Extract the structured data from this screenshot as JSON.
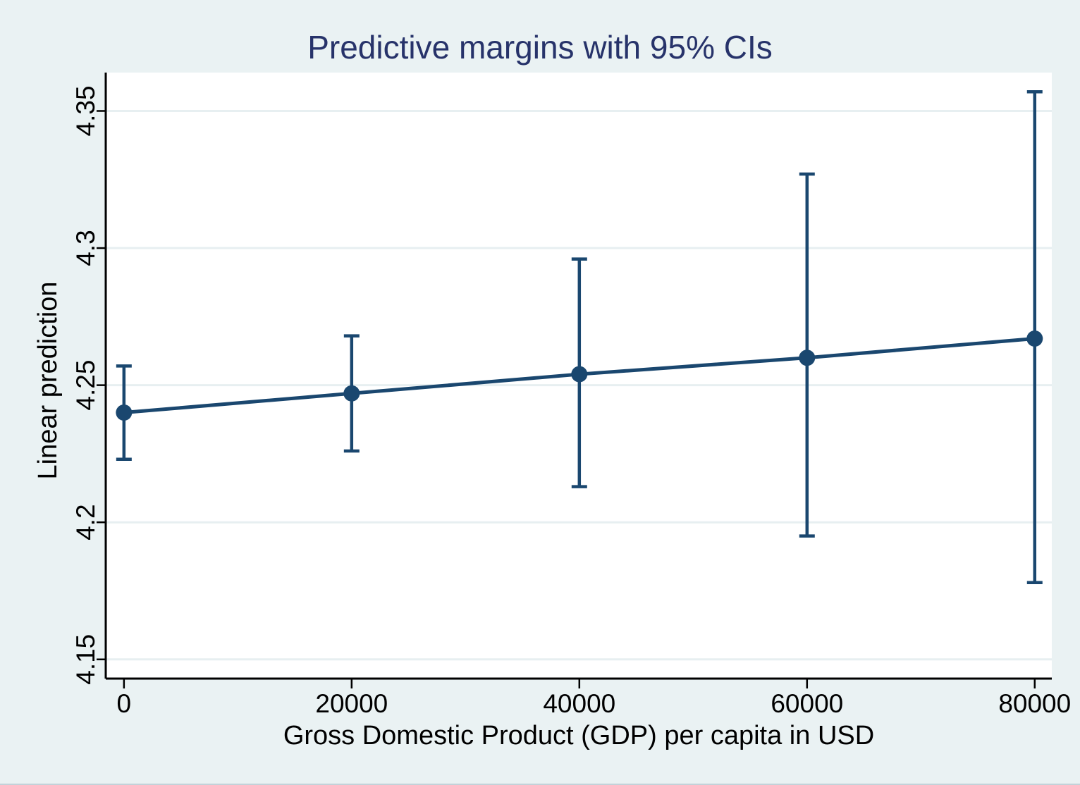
{
  "window": {
    "background_color": "#eaf2f3",
    "plot_background_color": "#ffffff",
    "axis_color": "#000000",
    "gridline_color": "#e7eff1",
    "series_color": "#1a476f",
    "title_color": "#27336a"
  },
  "chart_data": {
    "type": "line",
    "subtype": "predictive-margins-with-confidence-intervals",
    "title": "Predictive margins with 95% CIs",
    "xlabel": "Gross Domestic Product (GDP) per capita in USD",
    "ylabel": "Linear prediction",
    "x": [
      0,
      20000,
      40000,
      60000,
      80000
    ],
    "series": [
      {
        "name": "Linear prediction",
        "values": [
          4.24,
          4.247,
          4.254,
          4.26,
          4.267
        ],
        "ci_low": [
          4.223,
          4.226,
          4.213,
          4.195,
          4.178
        ],
        "ci_high": [
          4.257,
          4.268,
          4.296,
          4.327,
          4.357
        ]
      }
    ],
    "x_ticks": [
      0,
      20000,
      40000,
      60000,
      80000
    ],
    "x_tick_labels": [
      "0",
      "20000",
      "40000",
      "60000",
      "80000"
    ],
    "y_ticks": [
      4.15,
      4.2,
      4.25,
      4.3,
      4.35
    ],
    "y_tick_labels": [
      "4.15",
      "4.2",
      "4.25",
      "4.3",
      "4.35"
    ],
    "xlim": [
      -1600,
      81500
    ],
    "ylim": [
      4.143,
      4.364
    ],
    "grid": "horizontal gridlines at y ticks",
    "legend": "none",
    "marker": "filled circle",
    "error_bar_caps": true
  }
}
